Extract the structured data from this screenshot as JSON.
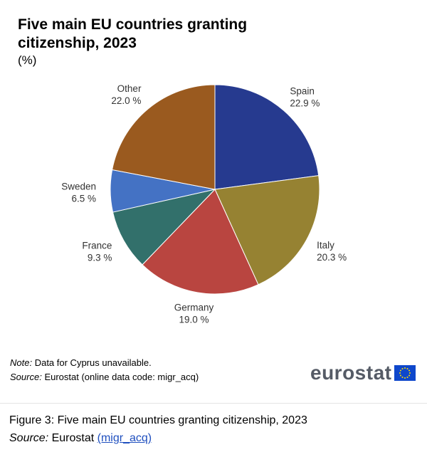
{
  "chart_data": {
    "type": "pie",
    "title": "Five main EU countries granting citizenship, 2023",
    "unit": "(%)",
    "slices": [
      {
        "label": "Spain",
        "value": 22.9,
        "value_text": "22.9 %",
        "color": "#263a8f"
      },
      {
        "label": "Italy",
        "value": 20.3,
        "value_text": "20.3 %",
        "color": "#968232"
      },
      {
        "label": "Germany",
        "value": 19.0,
        "value_text": "19.0 %",
        "color": "#b94540"
      },
      {
        "label": "France",
        "value": 9.3,
        "value_text": "9.3 %",
        "color": "#32706b"
      },
      {
        "label": "Sweden",
        "value": 6.5,
        "value_text": "6.5 %",
        "color": "#4472c4"
      },
      {
        "label": "Other",
        "value": 22.0,
        "value_text": "22.0 %",
        "color": "#9a5a1f"
      }
    ]
  },
  "footnotes": {
    "note_label": "Note:",
    "note_text": "Data for Cyprus unavailable.",
    "source_label": "Source:",
    "source_text": "Eurostat (online data code: migr_acq)"
  },
  "logo": {
    "text": "eurostat",
    "flag_color": "#0e47cb",
    "star_color": "#ffdd00"
  },
  "caption": {
    "figure_text": "Figure 3: Five main EU countries granting citizenship, 2023",
    "source_label": "Source:",
    "source_text": "Eurostat",
    "source_link": "(migr_acq)"
  }
}
